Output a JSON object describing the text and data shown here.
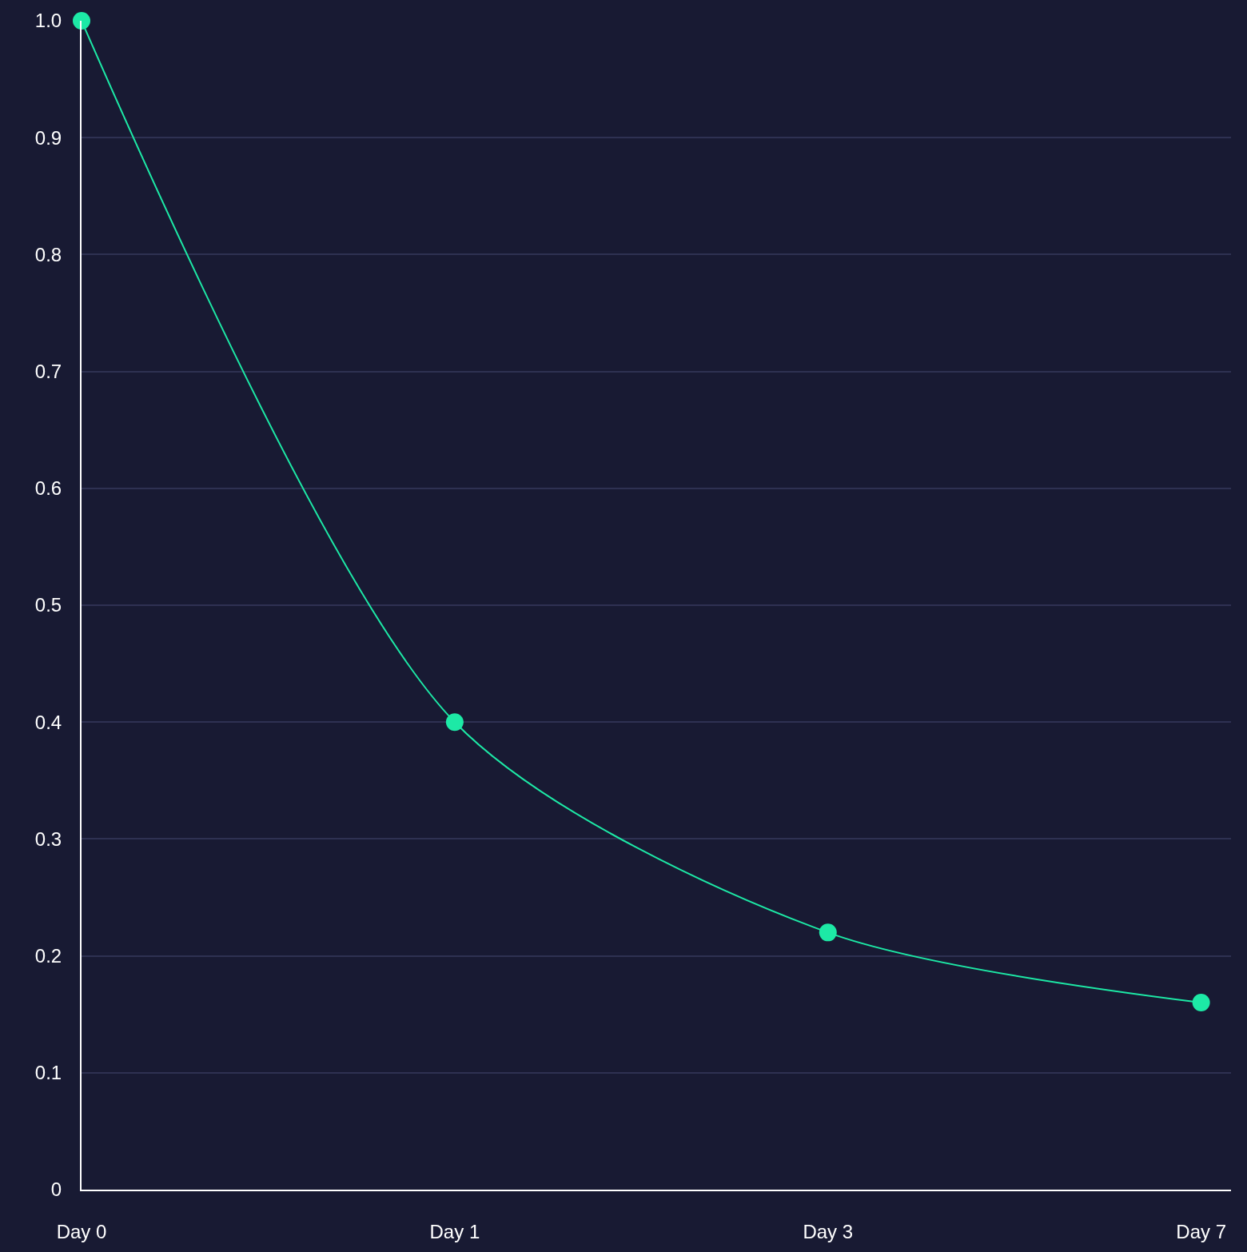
{
  "chart_data": {
    "type": "line",
    "categories": [
      "Day 0",
      "Day 1",
      "Day 3",
      "Day 7"
    ],
    "series": [
      {
        "color": "#1de9a6",
        "values": [
          1.0,
          0.4,
          0.22,
          0.16
        ]
      }
    ],
    "ylim": [
      0,
      1
    ],
    "yticks": [
      0,
      0.1,
      0.2,
      0.3,
      0.4,
      0.5,
      0.6,
      0.7,
      0.8,
      0.9,
      {
        "value": 1,
        "label": "1.0"
      }
    ],
    "grid": "y",
    "marker": "circle",
    "line_style": "solid",
    "legend": false
  }
}
